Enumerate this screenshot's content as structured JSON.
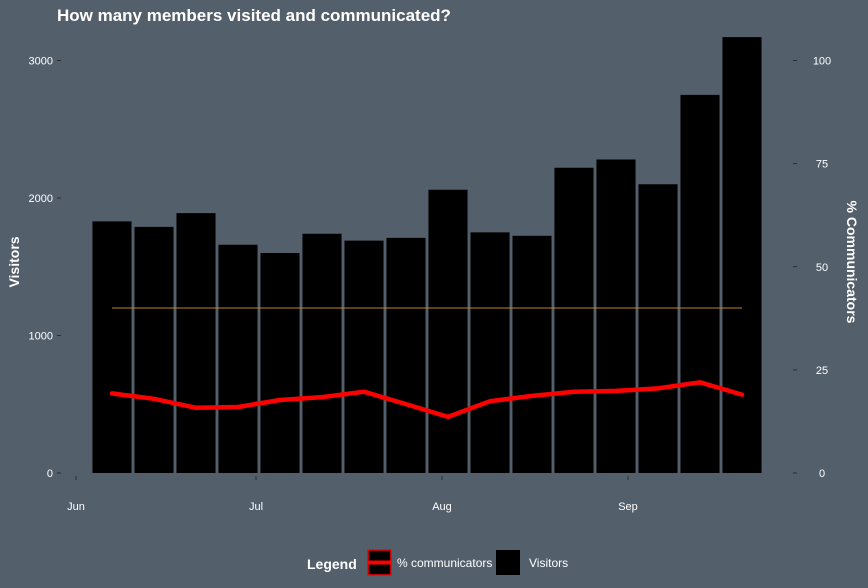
{
  "chart_data": {
    "type": "bar",
    "title": "How many members visited and communicated?",
    "ylabel": "Visitors",
    "y2label": "% Communicators",
    "ylim": [
      0,
      3200
    ],
    "y2lim": [
      0,
      106.67
    ],
    "yticks": [
      0,
      1000,
      2000,
      3000
    ],
    "y2ticks": [
      0,
      25,
      50,
      75,
      100
    ],
    "x_domain": [
      "2015-05-30",
      "2015-09-28"
    ],
    "xticks": [
      {
        "date": "2015-06-01",
        "label": "Jun"
      },
      {
        "date": "2015-07-01",
        "label": "Jul"
      },
      {
        "date": "2015-08-01",
        "label": "Aug"
      },
      {
        "date": "2015-09-01",
        "label": "Sep"
      }
    ],
    "grid": false,
    "legend_position": "bottom",
    "legend_title": "Legend",
    "background": "#535f6b",
    "bar_color": "#000000",
    "line_color": "#ff0000",
    "reference_color": "#b8862b",
    "reference_value": 40,
    "series": [
      {
        "name": "Visitors",
        "type": "bar",
        "axis": "left",
        "x": [
          "2015-06-07",
          "2015-06-14",
          "2015-06-21",
          "2015-06-28",
          "2015-07-05",
          "2015-07-12",
          "2015-07-19",
          "2015-07-26",
          "2015-08-02",
          "2015-08-09",
          "2015-08-16",
          "2015-08-23",
          "2015-08-30",
          "2015-09-06",
          "2015-09-13",
          "2015-09-20"
        ],
        "values": [
          1830,
          1790,
          1890,
          1660,
          1600,
          1740,
          1690,
          1710,
          2060,
          1750,
          1725,
          2220,
          2280,
          2100,
          2750,
          3170
        ]
      },
      {
        "name": "% communicators",
        "type": "line",
        "axis": "right",
        "x": [
          "2015-06-07",
          "2015-06-14",
          "2015-06-21",
          "2015-06-28",
          "2015-07-05",
          "2015-07-12",
          "2015-07-19",
          "2015-07-26",
          "2015-08-02",
          "2015-08-09",
          "2015-08-16",
          "2015-08-23",
          "2015-08-30",
          "2015-09-06",
          "2015-09-13",
          "2015-09-20"
        ],
        "values": [
          19.3,
          18.0,
          15.8,
          16.0,
          17.7,
          18.4,
          19.7,
          16.7,
          13.6,
          17.4,
          18.7,
          19.7,
          19.9,
          20.5,
          22.0,
          19.0
        ]
      }
    ]
  }
}
